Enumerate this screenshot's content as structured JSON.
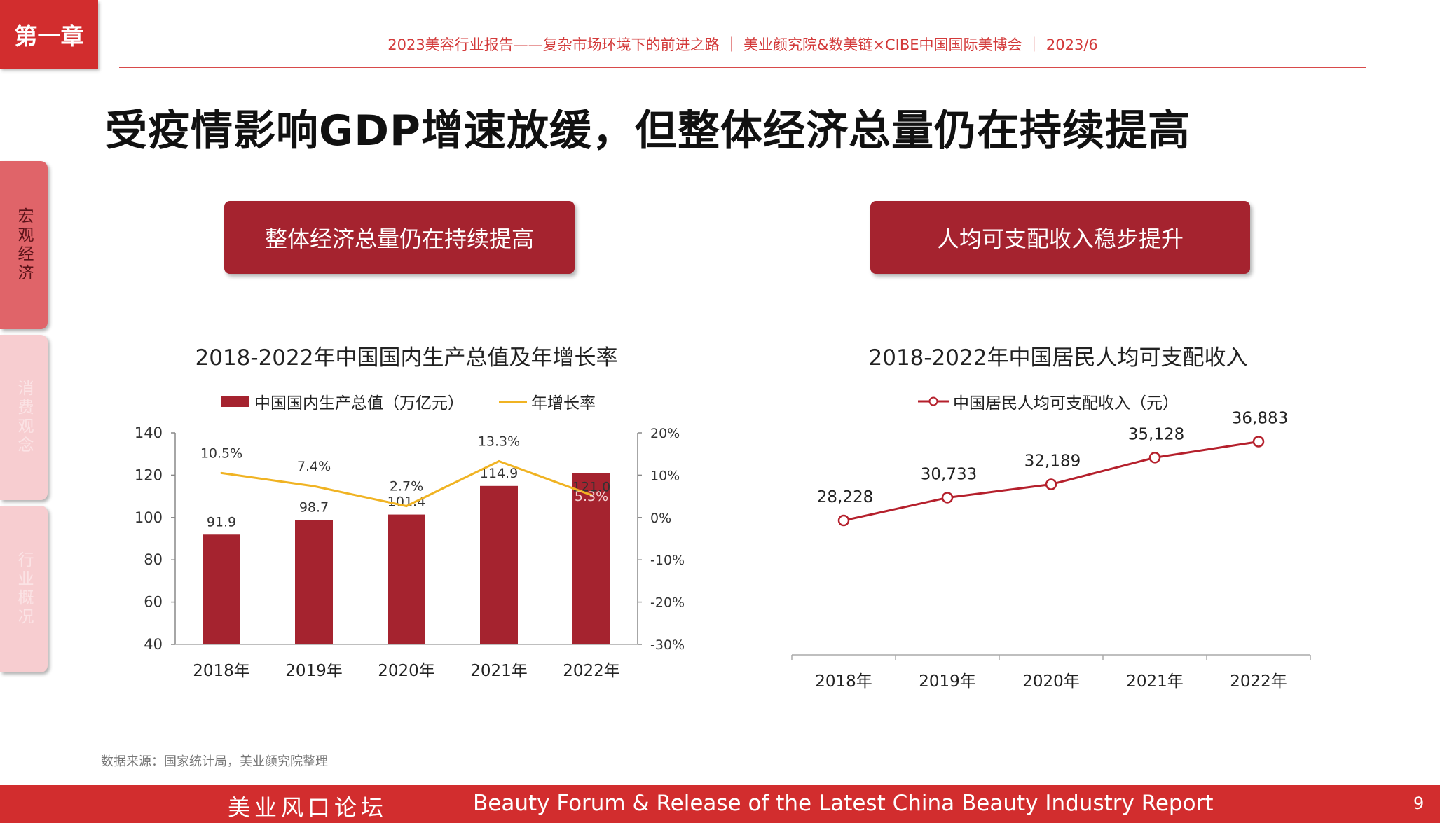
{
  "chapter_tag": "第一章",
  "header_text": "2023美容行业报告——复杂市场环境下的前进之路 ｜ 美业颜究院&数美链×CIBE中国国际美博会 ｜ 2023/6",
  "main_title": "受疫情影响GDP增速放缓，但整体经济总量仍在持续提高",
  "side_tabs": [
    {
      "label": "宏观经济",
      "active": true
    },
    {
      "label": "消费观念",
      "active": false
    },
    {
      "label": "行业概况",
      "active": false
    }
  ],
  "left_pill": "整体经济总量仍在持续提高",
  "right_pill": "人均可支配收入稳步提升",
  "source_note": "数据来源：国家统计局，美业颜究院整理",
  "footer": {
    "cn": "美业风口论坛",
    "en": "Beauty Forum & Release of the Latest China Beauty Industry Report",
    "page": "9"
  },
  "colors": {
    "bar": "#a5232f",
    "growth_line": "#f0b323",
    "income_line": "#b5202c",
    "accent": "#d22d2e"
  },
  "chart_data": [
    {
      "type": "bar",
      "title": "2018-2022年中国国内生产总值及年增长率",
      "categories": [
        "2018年",
        "2019年",
        "2020年",
        "2021年",
        "2022年"
      ],
      "series": [
        {
          "name": "中国国内生产总值（万亿元）",
          "type": "bar",
          "axis": "left",
          "values": [
            91.9,
            98.7,
            101.4,
            114.9,
            121.0
          ],
          "labels": [
            "91.9",
            "98.7",
            "101.4",
            "114.9",
            "121.0"
          ]
        },
        {
          "name": "年增长率",
          "type": "line",
          "axis": "right",
          "values": [
            10.5,
            7.4,
            2.7,
            13.3,
            5.3
          ],
          "labels": [
            "10.5%",
            "7.4%",
            "2.7%",
            "13.3%",
            "5.3%"
          ]
        }
      ],
      "y_left": {
        "min": 40,
        "max": 140,
        "ticks": [
          "40",
          "60",
          "80",
          "100",
          "120",
          "140"
        ]
      },
      "y_right": {
        "min": -30,
        "max": 20,
        "ticks": [
          "-30%",
          "-20%",
          "-10%",
          "0%",
          "10%",
          "20%"
        ]
      },
      "legend_position": "top"
    },
    {
      "type": "line",
      "title": "2018-2022年中国居民人均可支配收入",
      "categories": [
        "2018年",
        "2019年",
        "2020年",
        "2021年",
        "2022年"
      ],
      "series": [
        {
          "name": "中国居民人均可支配收入（元）",
          "values": [
            28228,
            30733,
            32189,
            35128,
            36883
          ],
          "labels": [
            "28,228",
            "30,733",
            "32,189",
            "35,128",
            "36,883"
          ]
        }
      ],
      "legend_position": "top"
    }
  ]
}
